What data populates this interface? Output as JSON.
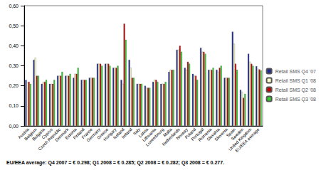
{
  "chart_data": {
    "type": "bar",
    "annotation": "EU/EEA average: Q4 2007 = € 0.298; Q1 2008 = € 0.285; Q2 2008 = € 0.282; Q3 2008 = € 0.277.",
    "categories": [
      "Austria",
      "Belgium",
      "Bulgaria",
      "Cyprus",
      "Czech Republic",
      "Denmark",
      "Estonia",
      "Finland",
      "France",
      "Germany",
      "Greece",
      "Hungary",
      "Iceland",
      "Ireland",
      "Italy",
      "Latvia",
      "Lithuania",
      "Luxembourg",
      "Malta",
      "Netherlands",
      "Norway",
      "Poland",
      "Portugal",
      "Romania",
      "Slovakia",
      "Slovenia",
      "Spain",
      "Sweden",
      "United Kingdom",
      "EU/EEA average"
    ],
    "series": [
      {
        "name": "Retail SMS Q4 '07",
        "color": "#1f2a8c",
        "values": [
          0.23,
          0.33,
          0.21,
          0.21,
          0.25,
          0.25,
          0.24,
          0.23,
          0.24,
          0.31,
          0.31,
          0.29,
          0.23,
          0.33,
          0.21,
          0.2,
          0.22,
          0.21,
          0.27,
          0.38,
          0.29,
          0.26,
          0.39,
          0.28,
          0.28,
          0.24,
          0.47,
          0.18,
          0.36,
          0.298
        ]
      },
      {
        "name": "Retail SMS Q1 '08",
        "color": "#ffffcc",
        "values": [
          0.22,
          0.34,
          0.22,
          0.21,
          0.25,
          0.25,
          0.26,
          0.23,
          0.24,
          0.31,
          0.31,
          0.29,
          0.21,
          0.29,
          0.21,
          0.19,
          0.23,
          0.21,
          0.28,
          0.38,
          0.28,
          0.25,
          0.37,
          0.28,
          0.27,
          0.24,
          0.41,
          0.17,
          0.32,
          0.285
        ]
      },
      {
        "name": "Retail SMS Q2 '08",
        "color": "#c00000",
        "values": [
          0.22,
          0.25,
          0.22,
          0.21,
          0.25,
          0.25,
          0.26,
          0.23,
          0.24,
          0.31,
          0.31,
          0.29,
          0.51,
          0.24,
          0.21,
          0.19,
          0.23,
          0.21,
          0.28,
          0.4,
          0.32,
          0.25,
          0.37,
          0.28,
          0.29,
          0.24,
          0.31,
          0.14,
          0.31,
          0.282
        ]
      },
      {
        "name": "Retail SMS Q3 '08",
        "color": "#33cc33",
        "values": [
          0.21,
          0.25,
          0.23,
          0.23,
          0.27,
          0.26,
          0.29,
          0.23,
          0.24,
          0.3,
          0.3,
          0.3,
          0.43,
          0.24,
          0.21,
          0.19,
          0.22,
          0.22,
          0.28,
          0.37,
          0.31,
          0.23,
          0.36,
          0.29,
          0.3,
          0.24,
          0.28,
          0.16,
          0.3,
          0.277
        ]
      }
    ],
    "ylim": [
      0,
      0.6
    ],
    "yticks": [
      {
        "value": 0,
        "label": "0,00"
      },
      {
        "value": 0.1,
        "label": "0,10"
      },
      {
        "value": 0.2,
        "label": "0,20"
      },
      {
        "value": 0.3,
        "label": "0,30"
      },
      {
        "value": 0.4,
        "label": "0,40"
      },
      {
        "value": 0.5,
        "label": "0,50"
      },
      {
        "value": 0.6,
        "label": "0,60"
      }
    ],
    "grid": false,
    "legend": "right"
  }
}
